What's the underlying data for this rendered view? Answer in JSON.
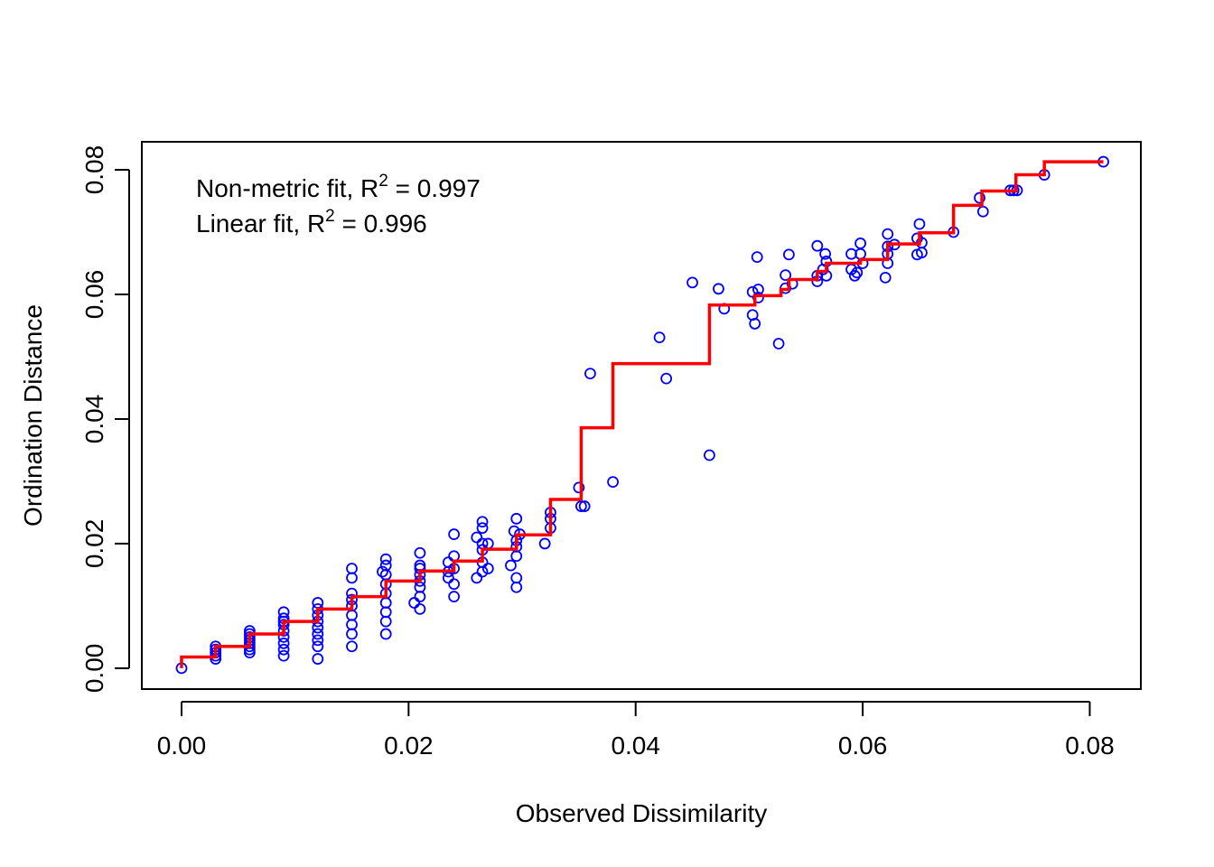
{
  "chart_data": {
    "type": "scatter",
    "xlabel": "Observed Dissimilarity",
    "ylabel": "Ordination Distance",
    "xlim": [
      -0.0035,
      0.0845
    ],
    "ylim": [
      -0.00335,
      0.0845
    ],
    "x_ticks": [
      0.0,
      0.02,
      0.04,
      0.06,
      0.08
    ],
    "x_tick_labels": [
      "0.00",
      "0.02",
      "0.04",
      "0.06",
      "0.08"
    ],
    "y_ticks": [
      0.0,
      0.02,
      0.04,
      0.06,
      0.08
    ],
    "y_tick_labels": [
      "0.00",
      "0.02",
      "0.04",
      "0.06",
      "0.08"
    ],
    "grid": false,
    "annotations": [
      {
        "prefix": "Non-metric fit, R",
        "sup": "2",
        "suffix": " = 0.997"
      },
      {
        "prefix": "Linear fit, R",
        "sup": "2",
        "suffix": " = 0.996"
      }
    ],
    "colors": {
      "points": "#0000ff",
      "fit_line": "#ff0000",
      "axes": "#000000"
    },
    "series": [
      {
        "type": "scatter",
        "marker": "open-circle",
        "points": [
          [
            0.0,
            0.0
          ],
          [
            0.003,
            0.0015
          ],
          [
            0.003,
            0.002
          ],
          [
            0.003,
            0.0025
          ],
          [
            0.003,
            0.003
          ],
          [
            0.003,
            0.0035
          ],
          [
            0.006,
            0.0025
          ],
          [
            0.006,
            0.003
          ],
          [
            0.006,
            0.0035
          ],
          [
            0.006,
            0.004
          ],
          [
            0.006,
            0.0045
          ],
          [
            0.006,
            0.005
          ],
          [
            0.006,
            0.0055
          ],
          [
            0.006,
            0.006
          ],
          [
            0.009,
            0.002
          ],
          [
            0.009,
            0.003
          ],
          [
            0.009,
            0.004
          ],
          [
            0.009,
            0.005
          ],
          [
            0.009,
            0.006
          ],
          [
            0.009,
            0.007
          ],
          [
            0.009,
            0.0075
          ],
          [
            0.009,
            0.008
          ],
          [
            0.009,
            0.009
          ],
          [
            0.012,
            0.0015
          ],
          [
            0.012,
            0.0035
          ],
          [
            0.012,
            0.0045
          ],
          [
            0.012,
            0.0055
          ],
          [
            0.012,
            0.0065
          ],
          [
            0.012,
            0.0075
          ],
          [
            0.012,
            0.0085
          ],
          [
            0.012,
            0.0095
          ],
          [
            0.012,
            0.0105
          ],
          [
            0.015,
            0.0035
          ],
          [
            0.015,
            0.0055
          ],
          [
            0.015,
            0.007
          ],
          [
            0.015,
            0.0085
          ],
          [
            0.015,
            0.01
          ],
          [
            0.015,
            0.011
          ],
          [
            0.015,
            0.012
          ],
          [
            0.015,
            0.0145
          ],
          [
            0.015,
            0.016
          ],
          [
            0.0177,
            0.0155
          ],
          [
            0.018,
            0.0055
          ],
          [
            0.018,
            0.0075
          ],
          [
            0.018,
            0.009
          ],
          [
            0.018,
            0.0105
          ],
          [
            0.018,
            0.012
          ],
          [
            0.018,
            0.0135
          ],
          [
            0.018,
            0.015
          ],
          [
            0.018,
            0.0165
          ],
          [
            0.018,
            0.0175
          ],
          [
            0.0205,
            0.0105
          ],
          [
            0.021,
            0.0095
          ],
          [
            0.021,
            0.0115
          ],
          [
            0.021,
            0.013
          ],
          [
            0.021,
            0.014
          ],
          [
            0.021,
            0.015
          ],
          [
            0.021,
            0.016
          ],
          [
            0.021,
            0.0165
          ],
          [
            0.021,
            0.0185
          ],
          [
            0.0235,
            0.0145
          ],
          [
            0.0235,
            0.0155
          ],
          [
            0.0235,
            0.017
          ],
          [
            0.024,
            0.0115
          ],
          [
            0.024,
            0.0135
          ],
          [
            0.024,
            0.016
          ],
          [
            0.024,
            0.018
          ],
          [
            0.024,
            0.0215
          ],
          [
            0.026,
            0.0145
          ],
          [
            0.026,
            0.021
          ],
          [
            0.0265,
            0.0155
          ],
          [
            0.0265,
            0.017
          ],
          [
            0.0265,
            0.019
          ],
          [
            0.0265,
            0.02
          ],
          [
            0.0265,
            0.0225
          ],
          [
            0.0265,
            0.0235
          ],
          [
            0.027,
            0.016
          ],
          [
            0.027,
            0.02
          ],
          [
            0.029,
            0.0165
          ],
          [
            0.0293,
            0.022
          ],
          [
            0.0295,
            0.013
          ],
          [
            0.0295,
            0.0145
          ],
          [
            0.0295,
            0.018
          ],
          [
            0.0295,
            0.0195
          ],
          [
            0.0295,
            0.0205
          ],
          [
            0.0295,
            0.024
          ],
          [
            0.0298,
            0.0215
          ],
          [
            0.032,
            0.02
          ],
          [
            0.0325,
            0.0225
          ],
          [
            0.0325,
            0.024
          ],
          [
            0.0325,
            0.025
          ],
          [
            0.035,
            0.029
          ],
          [
            0.0352,
            0.026
          ],
          [
            0.0355,
            0.026
          ],
          [
            0.036,
            0.0473
          ],
          [
            0.038,
            0.0299
          ],
          [
            0.0421,
            0.0531
          ],
          [
            0.0427,
            0.0465
          ],
          [
            0.045,
            0.0619
          ],
          [
            0.0465,
            0.0342
          ],
          [
            0.0473,
            0.0609
          ],
          [
            0.0478,
            0.0577
          ],
          [
            0.0503,
            0.0604
          ],
          [
            0.0503,
            0.0567
          ],
          [
            0.0505,
            0.0553
          ],
          [
            0.0507,
            0.066
          ],
          [
            0.0508,
            0.0595
          ],
          [
            0.0508,
            0.0608
          ],
          [
            0.0526,
            0.0521
          ],
          [
            0.0532,
            0.0631
          ],
          [
            0.0532,
            0.061
          ],
          [
            0.0535,
            0.0664
          ],
          [
            0.0538,
            0.0617
          ],
          [
            0.056,
            0.0678
          ],
          [
            0.056,
            0.0621
          ],
          [
            0.056,
            0.063
          ],
          [
            0.0565,
            0.064
          ],
          [
            0.0567,
            0.0665
          ],
          [
            0.0568,
            0.0653
          ],
          [
            0.0568,
            0.063
          ],
          [
            0.059,
            0.0665
          ],
          [
            0.059,
            0.064
          ],
          [
            0.0593,
            0.063
          ],
          [
            0.0595,
            0.0635
          ],
          [
            0.0598,
            0.0682
          ],
          [
            0.0598,
            0.0665
          ],
          [
            0.06,
            0.065
          ],
          [
            0.062,
            0.0627
          ],
          [
            0.0622,
            0.0697
          ],
          [
            0.0622,
            0.0677
          ],
          [
            0.0622,
            0.0665
          ],
          [
            0.0622,
            0.065
          ],
          [
            0.0628,
            0.068
          ],
          [
            0.0648,
            0.0664
          ],
          [
            0.0648,
            0.069
          ],
          [
            0.065,
            0.0713
          ],
          [
            0.0652,
            0.0667
          ],
          [
            0.0652,
            0.0683
          ],
          [
            0.068,
            0.07
          ],
          [
            0.0703,
            0.0755
          ],
          [
            0.0706,
            0.0733
          ],
          [
            0.073,
            0.0767
          ],
          [
            0.0733,
            0.0767
          ],
          [
            0.0736,
            0.0767
          ],
          [
            0.076,
            0.0792
          ],
          [
            0.0812,
            0.0813
          ]
        ]
      },
      {
        "type": "step",
        "points": [
          [
            0.0,
            0.0
          ],
          [
            0.0,
            0.0018
          ],
          [
            0.003,
            0.0018
          ],
          [
            0.003,
            0.0035
          ],
          [
            0.006,
            0.0035
          ],
          [
            0.006,
            0.0055
          ],
          [
            0.009,
            0.0055
          ],
          [
            0.009,
            0.0075
          ],
          [
            0.012,
            0.0075
          ],
          [
            0.012,
            0.0095
          ],
          [
            0.015,
            0.0095
          ],
          [
            0.015,
            0.0115
          ],
          [
            0.018,
            0.0115
          ],
          [
            0.018,
            0.014
          ],
          [
            0.021,
            0.014
          ],
          [
            0.021,
            0.0156
          ],
          [
            0.024,
            0.0156
          ],
          [
            0.024,
            0.0172
          ],
          [
            0.0265,
            0.0172
          ],
          [
            0.0265,
            0.0191
          ],
          [
            0.0295,
            0.0191
          ],
          [
            0.0295,
            0.0214
          ],
          [
            0.0325,
            0.0214
          ],
          [
            0.0325,
            0.0271
          ],
          [
            0.0352,
            0.0271
          ],
          [
            0.0352,
            0.0386
          ],
          [
            0.038,
            0.0386
          ],
          [
            0.038,
            0.0489
          ],
          [
            0.0465,
            0.0489
          ],
          [
            0.0465,
            0.0583
          ],
          [
            0.0505,
            0.0583
          ],
          [
            0.0505,
            0.0598
          ],
          [
            0.0528,
            0.0598
          ],
          [
            0.0528,
            0.0608
          ],
          [
            0.0535,
            0.0608
          ],
          [
            0.0535,
            0.0624
          ],
          [
            0.056,
            0.0624
          ],
          [
            0.056,
            0.0637
          ],
          [
            0.0568,
            0.0637
          ],
          [
            0.0568,
            0.065
          ],
          [
            0.0598,
            0.065
          ],
          [
            0.0598,
            0.0656
          ],
          [
            0.0622,
            0.0656
          ],
          [
            0.0622,
            0.0681
          ],
          [
            0.065,
            0.0681
          ],
          [
            0.065,
            0.0699
          ],
          [
            0.068,
            0.0699
          ],
          [
            0.068,
            0.0743
          ],
          [
            0.0705,
            0.0743
          ],
          [
            0.0705,
            0.0766
          ],
          [
            0.0735,
            0.0766
          ],
          [
            0.0735,
            0.0792
          ],
          [
            0.076,
            0.0792
          ],
          [
            0.076,
            0.0813
          ],
          [
            0.0812,
            0.0813
          ]
        ]
      }
    ]
  }
}
